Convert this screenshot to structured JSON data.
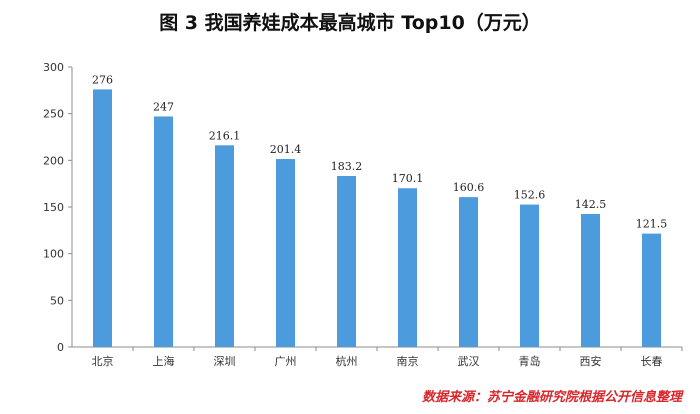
{
  "chart_data": {
    "type": "bar",
    "title": "图 3   我国养娃成本最高城市 Top10（万元）",
    "categories": [
      "北京",
      "上海",
      "深圳",
      "广州",
      "杭州",
      "南京",
      "武汉",
      "青岛",
      "西安",
      "长春"
    ],
    "values": [
      276,
      247,
      216.1,
      201.4,
      183.2,
      170.1,
      160.6,
      152.6,
      142.5,
      121.5
    ],
    "value_labels": [
      "276",
      "247",
      "216.1",
      "201.4",
      "183.2",
      "170.1",
      "160.6",
      "152.6",
      "142.5",
      "121.5"
    ],
    "y_ticks": [
      "0",
      "50",
      "100",
      "150",
      "200",
      "250",
      "300"
    ],
    "ylim": [
      0,
      300
    ],
    "grid": false,
    "bar_color": "#4c9bdc",
    "source": "数据来源：苏宁金融研究院根据公开信息整理"
  }
}
